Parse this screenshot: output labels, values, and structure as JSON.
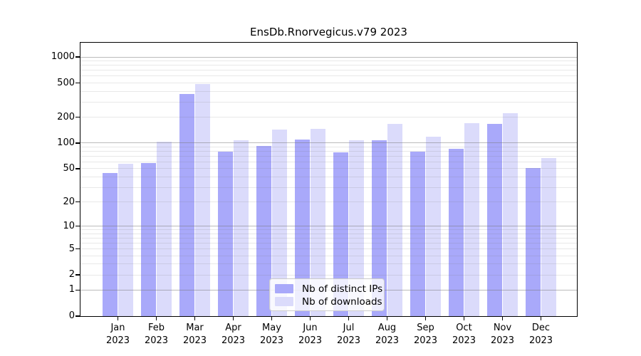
{
  "chart_data": {
    "type": "bar",
    "title": "EnsDb.Rnorvegicus.v79 2023",
    "categories": [
      "Jan",
      "Feb",
      "Mar",
      "Apr",
      "May",
      "Jun",
      "Jul",
      "Aug",
      "Sep",
      "Oct",
      "Nov",
      "Dec"
    ],
    "year": "2023",
    "series": [
      {
        "name": "Nb of distinct IPs",
        "color": "#A9A9FA",
        "values": [
          44,
          58,
          375,
          79,
          92,
          110,
          78,
          108,
          80,
          86,
          167,
          51
        ]
      },
      {
        "name": "Nb of downloads",
        "color": "#DBDBFB",
        "values": [
          57,
          104,
          489,
          108,
          144,
          146,
          108,
          166,
          119,
          170,
          223,
          66
        ]
      }
    ],
    "yscale": "log1p",
    "ylim": [
      0,
      1000
    ],
    "yticks": [
      0,
      1,
      2,
      5,
      10,
      20,
      50,
      100,
      200,
      500,
      1000
    ],
    "grid": true,
    "legend_position": "inside-bottom-center"
  }
}
